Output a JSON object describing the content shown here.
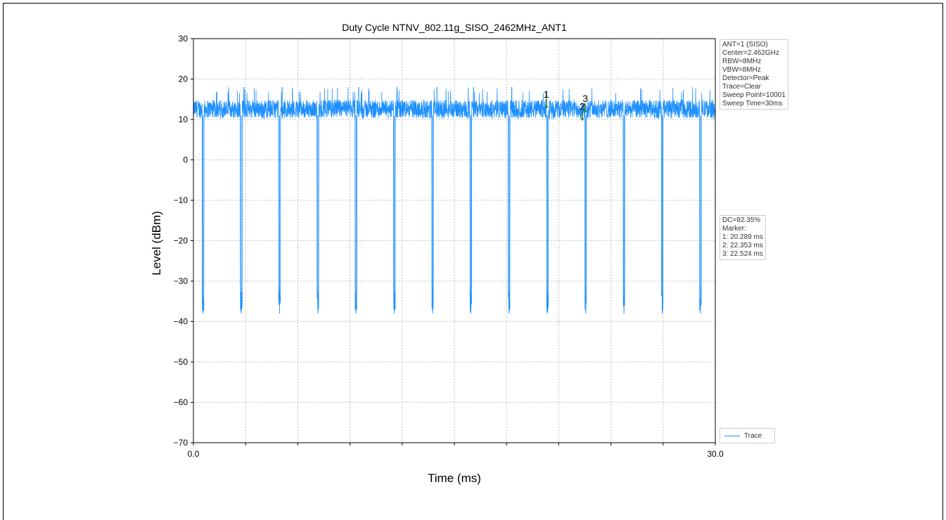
{
  "chart_data": {
    "type": "line",
    "title": "Duty Cycle NTNV_802.11g_SISO_2462MHz_ANT1",
    "xlabel": "Time (ms)",
    "ylabel": "Level (dBm)",
    "xlim": [
      0.0,
      30.0
    ],
    "ylim": [
      -70,
      30
    ],
    "x_tick_labels": [
      "0.0",
      "30.0"
    ],
    "x_gridlines": [
      3,
      6,
      9,
      12,
      15,
      18,
      21,
      24,
      27
    ],
    "y_ticks": [
      30,
      20,
      10,
      0,
      -10,
      -20,
      -30,
      -40,
      -50,
      -60,
      -70
    ],
    "grid": true,
    "series": [
      {
        "name": "Trace",
        "color": "#1e90ff",
        "on_level_range": [
          10.5,
          16.5
        ],
        "gap_floor_range": [
          -38,
          -32
        ],
        "gap_times_ms": [
          0.55,
          2.75,
          4.95,
          7.15,
          9.35,
          11.55,
          13.75,
          15.95,
          18.15,
          20.35,
          22.55,
          24.75,
          26.95,
          29.15
        ],
        "spike_times_ms": [
          2.9,
          5.1,
          9.5,
          11.7,
          14.0,
          16.1,
          18.3
        ]
      }
    ],
    "markers": [
      {
        "label": "1",
        "x": 20.289,
        "y": 14.0,
        "color": "#2e8b57"
      },
      {
        "label": "2",
        "x": 22.353,
        "y": 11.0,
        "color": "#2e8b57"
      },
      {
        "label": "3",
        "x": 22.524,
        "y": 13.0,
        "color": "#2e8b57"
      }
    ],
    "info_box": [
      "ANT=1 (SISO)",
      "Center=2.462GHz",
      "RBW=8MHz",
      "VBW=8MHz",
      "Detector=Peak",
      "Trace=Clear",
      "Sweep Point=10001",
      "Sweep Time=30ms"
    ],
    "dc_box": [
      "DC=92.35%",
      "Marker:",
      "1: 20.289 ms",
      "2: 22.353 ms",
      "3: 22.524 ms"
    ],
    "legend": {
      "placement": "bottom-right",
      "entries": [
        "Trace"
      ]
    }
  }
}
